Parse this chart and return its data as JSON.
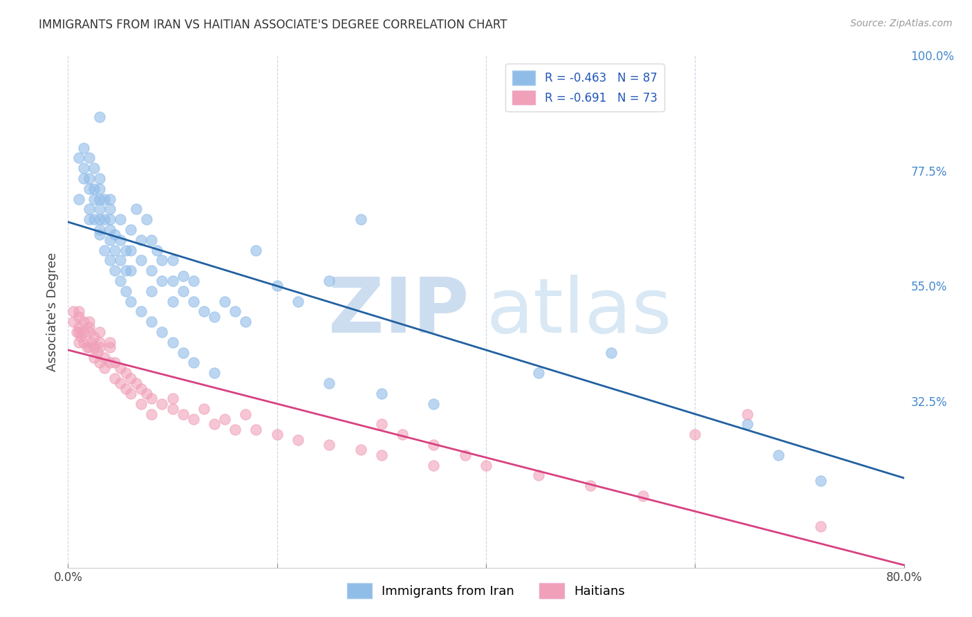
{
  "title": "IMMIGRANTS FROM IRAN VS HAITIAN ASSOCIATE'S DEGREE CORRELATION CHART",
  "source": "Source: ZipAtlas.com",
  "ylabel": "Associate's Degree",
  "xlim": [
    0.0,
    0.8
  ],
  "ylim": [
    0.0,
    1.0
  ],
  "xticks": [
    0.0,
    0.2,
    0.4,
    0.6,
    0.8
  ],
  "xticklabels": [
    "0.0%",
    "",
    "",
    "",
    "80.0%"
  ],
  "yticks_right": [
    0.0,
    0.325,
    0.55,
    0.775,
    1.0
  ],
  "yticklabels_right": [
    "",
    "32.5%",
    "55.0%",
    "77.5%",
    "100.0%"
  ],
  "legend_label_iran": "R = -0.463   N = 87",
  "legend_label_haiti": "R = -0.691   N = 73",
  "legend_bottom_iran": "Immigrants from Iran",
  "legend_bottom_haiti": "Haitians",
  "iran_color": "#90bce8",
  "iran_edge_color": "#90bce8",
  "haiti_color": "#f0a0b8",
  "haiti_edge_color": "#f0a0b8",
  "iran_line_color": "#2060a0",
  "haiti_line_color": "#d84080",
  "watermark_zip": "ZIP",
  "watermark_atlas": "atlas",
  "watermark_color": "#ccddf0",
  "iran_scatter_x": [
    0.01,
    0.015,
    0.015,
    0.02,
    0.02,
    0.02,
    0.02,
    0.025,
    0.025,
    0.025,
    0.03,
    0.03,
    0.03,
    0.03,
    0.03,
    0.03,
    0.035,
    0.035,
    0.04,
    0.04,
    0.04,
    0.04,
    0.04,
    0.045,
    0.045,
    0.05,
    0.05,
    0.05,
    0.055,
    0.055,
    0.06,
    0.06,
    0.06,
    0.065,
    0.07,
    0.07,
    0.075,
    0.08,
    0.08,
    0.08,
    0.085,
    0.09,
    0.09,
    0.1,
    0.1,
    0.1,
    0.11,
    0.11,
    0.12,
    0.12,
    0.13,
    0.14,
    0.15,
    0.16,
    0.17,
    0.18,
    0.2,
    0.22,
    0.25,
    0.28,
    0.01,
    0.015,
    0.02,
    0.025,
    0.03,
    0.035,
    0.04,
    0.045,
    0.05,
    0.055,
    0.06,
    0.07,
    0.08,
    0.09,
    0.1,
    0.11,
    0.12,
    0.14,
    0.25,
    0.3,
    0.35,
    0.45,
    0.52,
    0.65,
    0.68,
    0.72,
    0.03
  ],
  "iran_scatter_y": [
    0.8,
    0.78,
    0.82,
    0.76,
    0.8,
    0.74,
    0.7,
    0.78,
    0.72,
    0.68,
    0.76,
    0.72,
    0.68,
    0.65,
    0.74,
    0.7,
    0.72,
    0.68,
    0.7,
    0.66,
    0.72,
    0.64,
    0.68,
    0.65,
    0.62,
    0.64,
    0.6,
    0.68,
    0.62,
    0.58,
    0.66,
    0.62,
    0.58,
    0.7,
    0.64,
    0.6,
    0.68,
    0.64,
    0.58,
    0.54,
    0.62,
    0.6,
    0.56,
    0.6,
    0.56,
    0.52,
    0.57,
    0.54,
    0.56,
    0.52,
    0.5,
    0.49,
    0.52,
    0.5,
    0.48,
    0.62,
    0.55,
    0.52,
    0.56,
    0.68,
    0.72,
    0.76,
    0.68,
    0.74,
    0.66,
    0.62,
    0.6,
    0.58,
    0.56,
    0.54,
    0.52,
    0.5,
    0.48,
    0.46,
    0.44,
    0.42,
    0.4,
    0.38,
    0.36,
    0.34,
    0.32,
    0.38,
    0.42,
    0.28,
    0.22,
    0.17,
    0.88
  ],
  "haiti_scatter_x": [
    0.005,
    0.005,
    0.008,
    0.01,
    0.01,
    0.01,
    0.01,
    0.012,
    0.015,
    0.015,
    0.015,
    0.018,
    0.02,
    0.02,
    0.02,
    0.022,
    0.025,
    0.025,
    0.025,
    0.028,
    0.03,
    0.03,
    0.03,
    0.035,
    0.035,
    0.04,
    0.04,
    0.045,
    0.045,
    0.05,
    0.05,
    0.055,
    0.055,
    0.06,
    0.06,
    0.065,
    0.07,
    0.07,
    0.075,
    0.08,
    0.08,
    0.09,
    0.1,
    0.1,
    0.11,
    0.12,
    0.13,
    0.14,
    0.15,
    0.16,
    0.17,
    0.18,
    0.2,
    0.22,
    0.25,
    0.28,
    0.3,
    0.32,
    0.35,
    0.38,
    0.4,
    0.45,
    0.5,
    0.55,
    0.6,
    0.65,
    0.72,
    0.01,
    0.02,
    0.03,
    0.04,
    0.3,
    0.35
  ],
  "haiti_scatter_y": [
    0.48,
    0.5,
    0.46,
    0.49,
    0.46,
    0.44,
    0.47,
    0.45,
    0.46,
    0.44,
    0.48,
    0.43,
    0.46,
    0.43,
    0.47,
    0.44,
    0.43,
    0.45,
    0.41,
    0.42,
    0.43,
    0.4,
    0.44,
    0.41,
    0.39,
    0.4,
    0.43,
    0.4,
    0.37,
    0.39,
    0.36,
    0.38,
    0.35,
    0.37,
    0.34,
    0.36,
    0.35,
    0.32,
    0.34,
    0.33,
    0.3,
    0.32,
    0.31,
    0.33,
    0.3,
    0.29,
    0.31,
    0.28,
    0.29,
    0.27,
    0.3,
    0.27,
    0.26,
    0.25,
    0.24,
    0.23,
    0.28,
    0.26,
    0.24,
    0.22,
    0.2,
    0.18,
    0.16,
    0.14,
    0.26,
    0.3,
    0.08,
    0.5,
    0.48,
    0.46,
    0.44,
    0.22,
    0.2
  ],
  "iran_trendline_x": [
    0.0,
    0.8
  ],
  "iran_trendline_y": [
    0.675,
    0.175
  ],
  "haiti_trendline_x": [
    0.0,
    0.8
  ],
  "haiti_trendline_y": [
    0.425,
    0.005
  ]
}
